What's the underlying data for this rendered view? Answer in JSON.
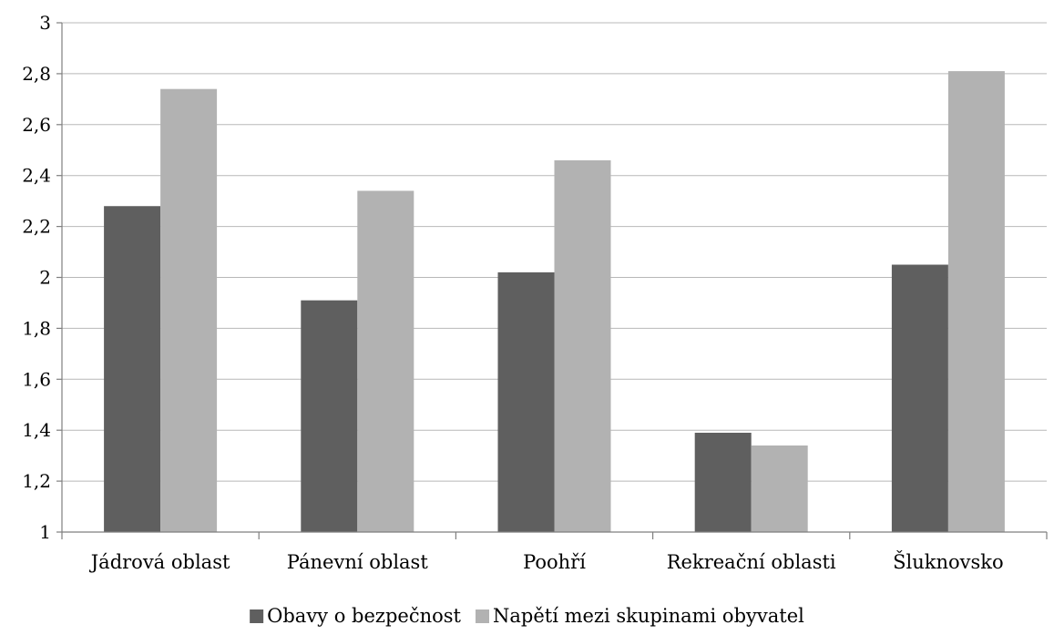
{
  "chart_data": {
    "type": "bar",
    "categories": [
      "Jádrová oblast",
      "Pánevní oblast",
      "Poohří",
      "Rekreační oblasti",
      "Šluknovsko"
    ],
    "series": [
      {
        "name": "Obavy o bezpečnost",
        "values": [
          2.28,
          1.91,
          2.02,
          1.39,
          2.05
        ],
        "color": "#5f5f5f"
      },
      {
        "name": "Napětí mezi skupinami obyvatel",
        "values": [
          2.74,
          2.34,
          2.46,
          1.34,
          2.81
        ],
        "color": "#b2b2b2"
      }
    ],
    "ylim": [
      1,
      3
    ],
    "yticks": [
      1,
      1.2,
      1.4,
      1.6,
      1.8,
      2,
      2.2,
      2.4,
      2.6,
      2.8,
      3
    ],
    "ytick_labels": [
      "1",
      "1,2",
      "1,4",
      "1,6",
      "1,8",
      "2",
      "2,2",
      "2,4",
      "2,6",
      "2,8",
      "3"
    ],
    "grid": true,
    "legend_position": "bottom",
    "title": "",
    "xlabel": "",
    "ylabel": ""
  }
}
